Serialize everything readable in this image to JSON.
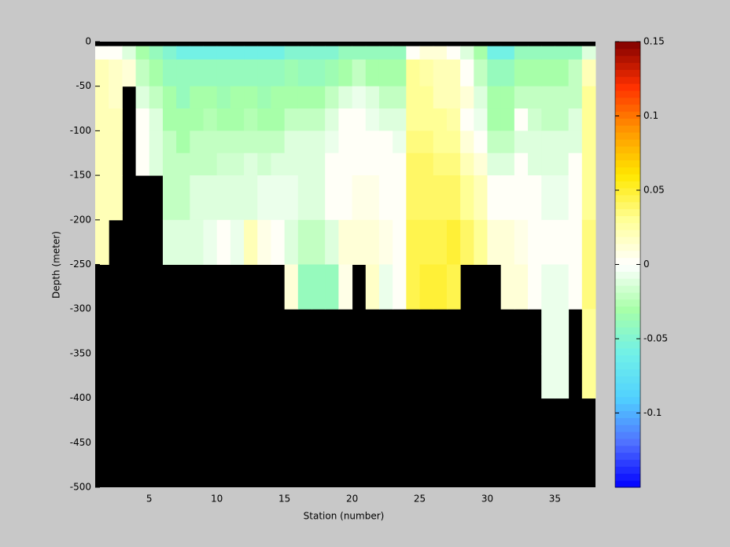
{
  "chart_data": {
    "type": "heatmap",
    "xlabel": "Station (number)",
    "ylabel": "Depth (meter)",
    "x": [
      1,
      2,
      3,
      4,
      5,
      6,
      7,
      8,
      9,
      10,
      11,
      12,
      13,
      14,
      15,
      16,
      17,
      18,
      19,
      20,
      21,
      22,
      23,
      24,
      25,
      26,
      27,
      28,
      29,
      30,
      31,
      32,
      33,
      34,
      35,
      36,
      37,
      38
    ],
    "y": [
      0,
      -5,
      -20,
      -50,
      -75,
      -100,
      -125,
      -150,
      -200,
      -250,
      -300,
      -350,
      -400,
      -450,
      -500
    ],
    "z": [
      [
        null,
        0,
        0.02,
        0.02,
        0.02,
        0.02,
        0.02,
        0.02,
        0.02,
        null,
        null,
        null,
        null,
        null
      ],
      [
        null,
        0,
        0.015,
        0.015,
        0.02,
        0.02,
        0.02,
        0.02,
        null,
        null,
        null,
        null,
        null,
        null
      ],
      [
        null,
        -0.01,
        0.01,
        null,
        null,
        null,
        null,
        null,
        null,
        null,
        null,
        null,
        null,
        null
      ],
      [
        null,
        -0.03,
        -0.02,
        -0.01,
        0,
        0,
        0,
        null,
        null,
        null,
        null,
        null,
        null,
        null
      ],
      [
        null,
        -0.04,
        -0.03,
        -0.02,
        -0.01,
        -0.01,
        -0.01,
        null,
        null,
        null,
        null,
        null,
        null,
        null
      ],
      [
        null,
        -0.05,
        -0.04,
        -0.03,
        -0.03,
        -0.02,
        -0.02,
        -0.02,
        -0.01,
        null,
        null,
        null,
        null,
        null
      ],
      [
        null,
        -0.06,
        -0.04,
        -0.04,
        -0.03,
        -0.03,
        -0.02,
        -0.02,
        -0.01,
        null,
        null,
        null,
        null,
        null
      ],
      [
        null,
        -0.06,
        -0.04,
        -0.03,
        -0.03,
        -0.02,
        -0.02,
        -0.01,
        -0.01,
        null,
        null,
        null,
        null,
        null
      ],
      [
        null,
        -0.06,
        -0.04,
        -0.03,
        -0.025,
        -0.02,
        -0.02,
        -0.01,
        -0.005,
        null,
        null,
        null,
        null,
        null
      ],
      [
        null,
        -0.06,
        -0.04,
        -0.035,
        -0.03,
        -0.02,
        -0.015,
        -0.01,
        0,
        null,
        null,
        null,
        null,
        null
      ],
      [
        null,
        -0.06,
        -0.04,
        -0.03,
        -0.03,
        -0.02,
        -0.015,
        -0.01,
        -0.005,
        null,
        null,
        null,
        null,
        null
      ],
      [
        null,
        -0.06,
        -0.04,
        -0.03,
        -0.025,
        -0.02,
        -0.01,
        -0.01,
        0.02,
        null,
        null,
        null,
        null,
        null
      ],
      [
        null,
        -0.06,
        -0.04,
        -0.035,
        -0.03,
        -0.02,
        -0.015,
        -0.005,
        0.005,
        null,
        null,
        null,
        null,
        null
      ],
      [
        null,
        -0.06,
        -0.04,
        -0.03,
        -0.03,
        -0.02,
        -0.01,
        -0.005,
        0,
        null,
        null,
        null,
        null,
        null
      ],
      [
        null,
        -0.05,
        -0.035,
        -0.03,
        -0.02,
        -0.01,
        -0.01,
        -0.005,
        -0.01,
        0.01,
        null,
        null,
        null,
        null
      ],
      [
        null,
        -0.05,
        -0.04,
        -0.03,
        -0.02,
        -0.01,
        -0.01,
        -0.01,
        -0.02,
        -0.04,
        null,
        null,
        null,
        null
      ],
      [
        null,
        -0.05,
        -0.04,
        -0.03,
        -0.02,
        -0.01,
        -0.01,
        -0.01,
        -0.02,
        -0.04,
        null,
        null,
        null,
        null
      ],
      [
        null,
        -0.05,
        -0.035,
        -0.02,
        -0.01,
        -0.005,
        0,
        0,
        -0.01,
        -0.04,
        null,
        null,
        null,
        null
      ],
      [
        null,
        -0.04,
        -0.03,
        -0.01,
        0,
        0,
        0,
        0,
        0.01,
        0.005,
        null,
        null,
        null,
        null
      ],
      [
        null,
        -0.04,
        -0.02,
        -0.005,
        0,
        0,
        0,
        0.005,
        0.01,
        null,
        null,
        null,
        null,
        null
      ],
      [
        null,
        -0.04,
        -0.03,
        -0.01,
        -0.005,
        0,
        0,
        0.005,
        0.01,
        0.015,
        null,
        null,
        null,
        null
      ],
      [
        null,
        -0.04,
        -0.03,
        -0.02,
        -0.01,
        0,
        0,
        0,
        0.005,
        -0.005,
        null,
        null,
        null,
        null
      ],
      [
        null,
        -0.04,
        -0.03,
        -0.02,
        -0.01,
        -0.005,
        0,
        0,
        0,
        0,
        null,
        null,
        null,
        null
      ],
      [
        null,
        0,
        0.03,
        0.03,
        0.03,
        0.035,
        0.04,
        0.04,
        0.045,
        0.045,
        null,
        null,
        null,
        null
      ],
      [
        null,
        0.01,
        0.025,
        0.03,
        0.03,
        0.035,
        0.04,
        0.04,
        0.045,
        0.05,
        null,
        null,
        null,
        null
      ],
      [
        null,
        0.01,
        0.02,
        0.02,
        0.03,
        0.03,
        0.035,
        0.04,
        0.045,
        0.05,
        null,
        null,
        null,
        null
      ],
      [
        null,
        0,
        0.02,
        0.02,
        0.025,
        0.03,
        0.035,
        0.04,
        0.05,
        0.045,
        null,
        null,
        null,
        null
      ],
      [
        null,
        -0.01,
        0,
        0.01,
        0,
        0.01,
        0.02,
        0.03,
        0.04,
        null,
        null,
        null,
        null,
        null
      ],
      [
        null,
        -0.03,
        -0.02,
        -0.01,
        -0.005,
        0,
        0.01,
        0.02,
        0.03,
        null,
        null,
        null,
        null,
        null
      ],
      [
        null,
        -0.06,
        -0.04,
        -0.03,
        -0.03,
        -0.02,
        -0.01,
        0,
        0.01,
        null,
        null,
        null,
        null,
        null
      ],
      [
        null,
        -0.06,
        -0.04,
        -0.03,
        -0.03,
        -0.02,
        -0.01,
        0,
        0.01,
        0.01,
        null,
        null,
        null,
        null
      ],
      [
        null,
        -0.04,
        -0.03,
        -0.02,
        0,
        -0.01,
        0,
        0,
        0.005,
        0.01,
        null,
        null,
        null,
        null
      ],
      [
        null,
        -0.04,
        -0.03,
        -0.02,
        -0.015,
        -0.01,
        -0.01,
        0,
        0,
        0,
        null,
        null,
        null,
        null
      ],
      [
        null,
        -0.04,
        -0.03,
        -0.02,
        -0.02,
        -0.01,
        -0.01,
        -0.005,
        0,
        -0.005,
        -0.005,
        -0.005,
        null,
        null
      ],
      [
        null,
        -0.04,
        -0.03,
        -0.02,
        -0.02,
        -0.01,
        -0.01,
        -0.005,
        0,
        -0.005,
        -0.005,
        -0.005,
        null,
        null
      ],
      [
        null,
        -0.04,
        -0.02,
        -0.02,
        -0.01,
        -0.01,
        0,
        0,
        0,
        0,
        null,
        null,
        null,
        null
      ],
      [
        null,
        -0.01,
        0.02,
        0.03,
        0.03,
        0.03,
        0.03,
        0.03,
        0.035,
        0.035,
        0.03,
        0.03,
        null,
        null
      ]
    ],
    "xlim": [
      1,
      38
    ],
    "xticks": [
      5,
      10,
      15,
      20,
      25,
      30,
      35
    ],
    "ylim": [
      -500,
      0
    ],
    "yticks": [
      0,
      -50,
      -100,
      -150,
      -200,
      -250,
      -300,
      -350,
      -400,
      -450,
      -500
    ],
    "clim": [
      -0.15,
      0.15
    ],
    "cticks": [
      0.15,
      0.1,
      0.05,
      0,
      -0.05,
      -0.1
    ],
    "colormap": [
      "#0000ff",
      "#5070ff",
      "#50d0ff",
      "#70f0e8",
      "#a8ffa8",
      "#ffffff",
      "#ffff98",
      "#ffe800",
      "#ff9800",
      "#ff3000",
      "#800000"
    ],
    "colormap_levels": 64,
    "nan_color": "#000000"
  }
}
